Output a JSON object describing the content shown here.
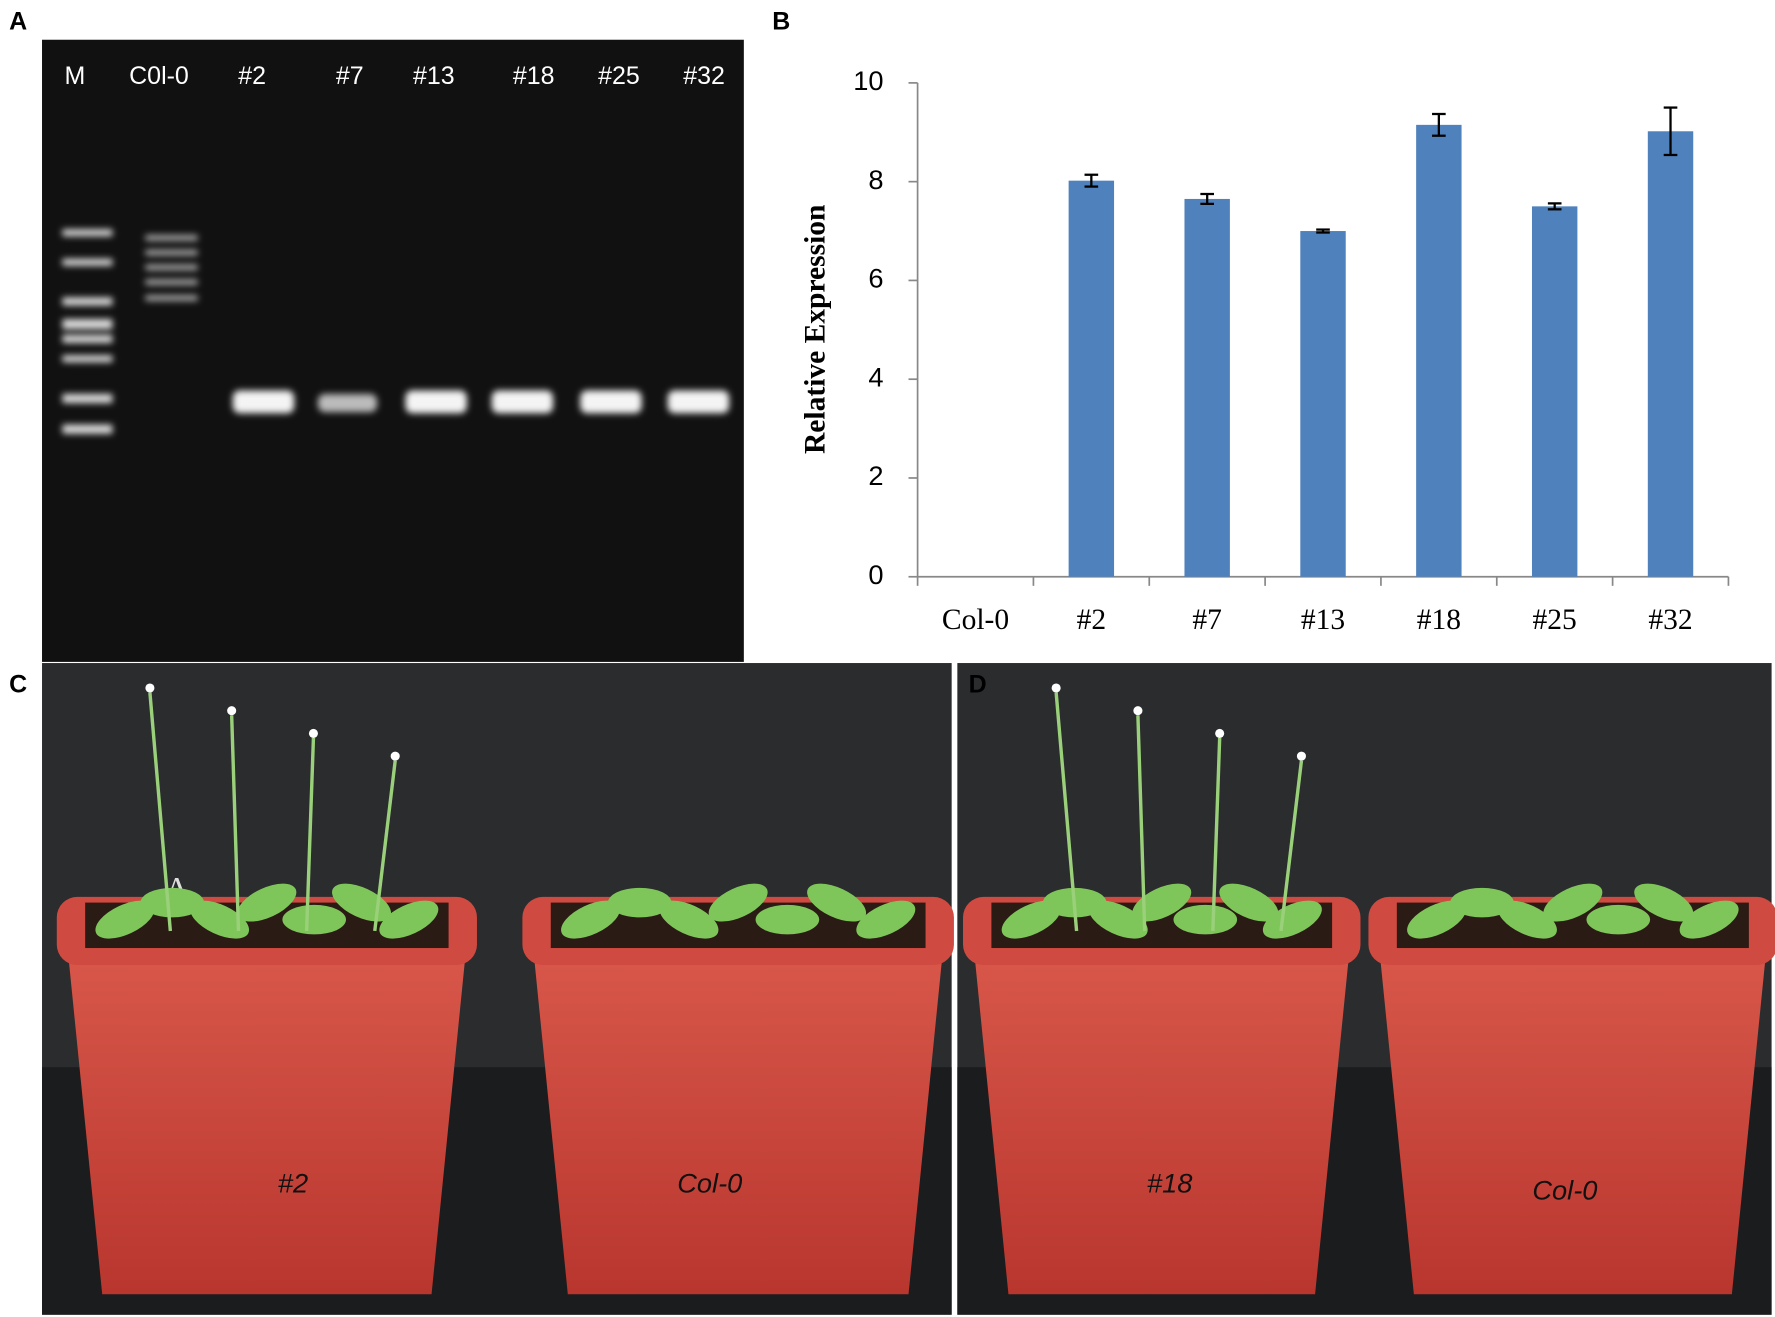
{
  "panels": {
    "a": {
      "letter": "A",
      "lanes": [
        "M",
        "C0l-0",
        "#2",
        "#7",
        "#13",
        "#18",
        "#25",
        "#32"
      ]
    },
    "b": {
      "letter": "B"
    },
    "c": {
      "letter": "C",
      "mark": "A",
      "pots": [
        "#2",
        "Col-0"
      ]
    },
    "d": {
      "letter": "D",
      "pots": [
        "#18",
        "Col-0"
      ]
    }
  },
  "chart_data": {
    "type": "bar",
    "ylabel": "Relative Expression",
    "categories": [
      "Col-0",
      "#2",
      "#7",
      "#13",
      "#18",
      "#25",
      "#32"
    ],
    "values": [
      0,
      8.02,
      7.65,
      7.0,
      9.15,
      7.5,
      9.02
    ],
    "errors": [
      0,
      0.12,
      0.1,
      0.03,
      0.22,
      0.06,
      0.48
    ],
    "color": "#4f81bd",
    "ylim": [
      0,
      10
    ],
    "yticks": [
      0,
      2,
      4,
      6,
      8,
      10
    ]
  }
}
